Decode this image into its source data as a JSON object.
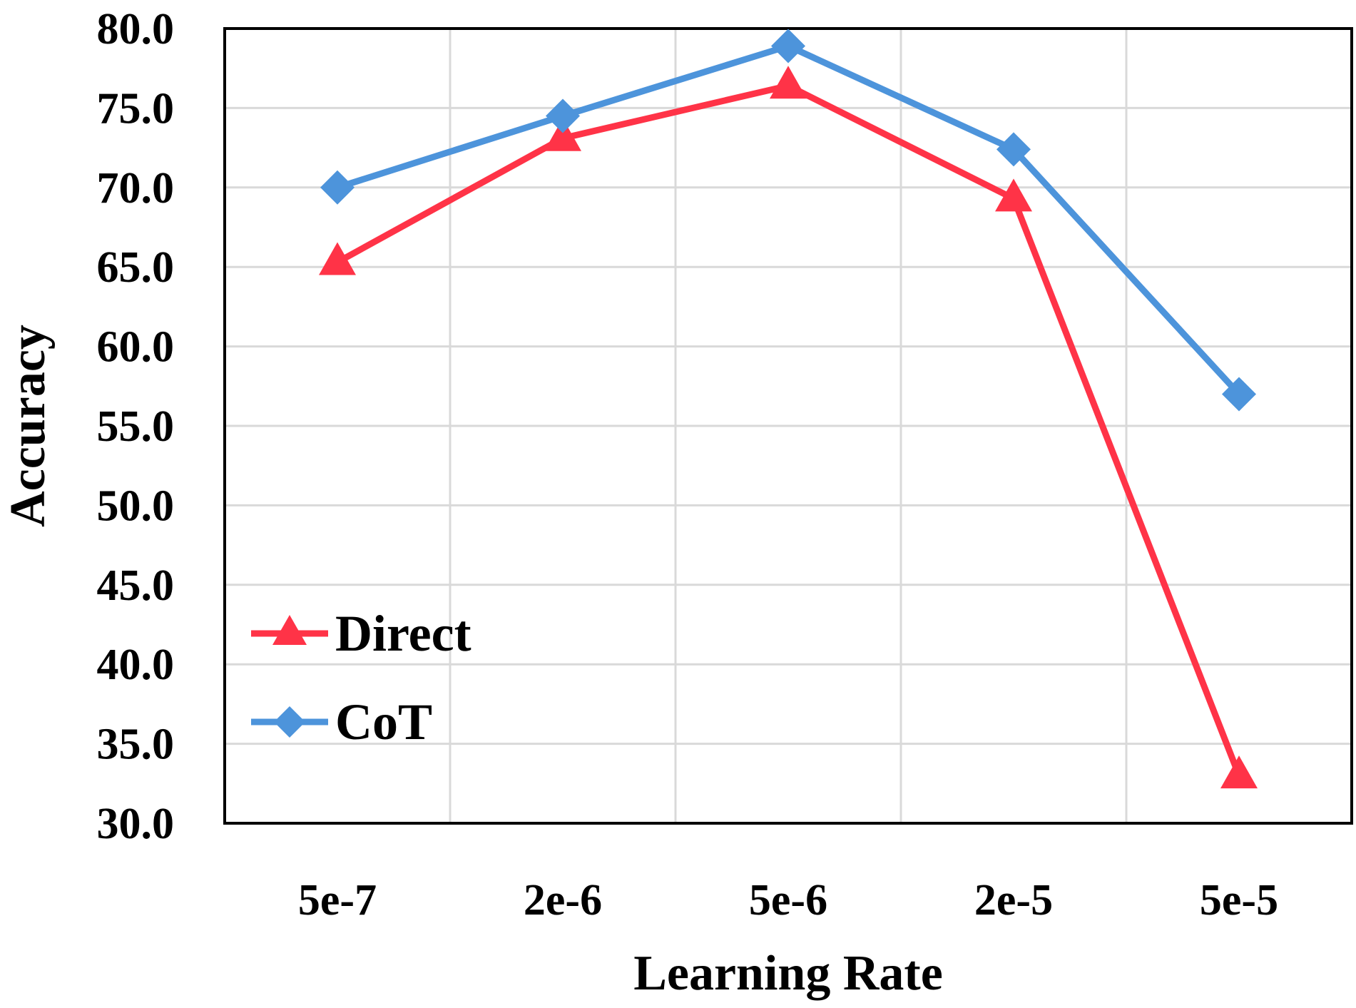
{
  "chart_data": {
    "type": "line",
    "title": "",
    "xlabel": "Learning Rate",
    "ylabel": "Accuracy",
    "categories": [
      "5e-7",
      "2e-6",
      "5e-6",
      "2e-5",
      "5e-5"
    ],
    "ylim": [
      30,
      80
    ],
    "ytick_step": 5,
    "ytick_labels": [
      "30.0",
      "35.0",
      "40.0",
      "45.0",
      "50.0",
      "55.0",
      "60.0",
      "65.0",
      "70.0",
      "75.0",
      "80.0"
    ],
    "grid": true,
    "legend_position": "bottom-left",
    "series": [
      {
        "name": "Direct",
        "marker": "triangle",
        "color": "#ff3347",
        "values": [
          65.3,
          73.1,
          76.4,
          69.3,
          33.0
        ]
      },
      {
        "name": "CoT",
        "marker": "diamond",
        "color": "#4d94db",
        "values": [
          70.0,
          74.5,
          78.9,
          72.4,
          57.0
        ]
      }
    ]
  }
}
